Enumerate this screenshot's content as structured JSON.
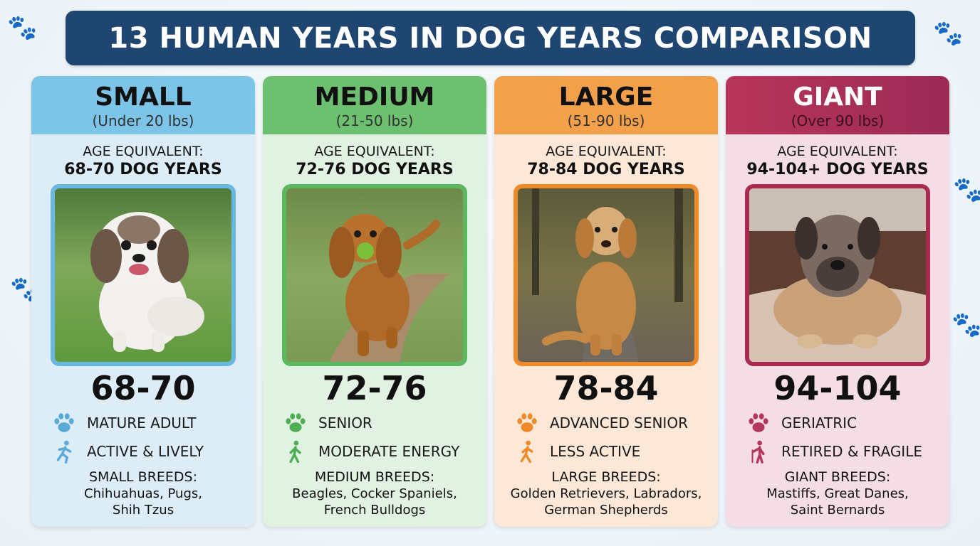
{
  "title": "13 HUMAN YEARS IN DOG YEARS COMPARISON",
  "colors": {
    "title_bg": "#1f4571",
    "small": "#7cc4e8",
    "medium": "#6cc070",
    "large": "#f2a04a",
    "giant": "#b8365a"
  },
  "cards": [
    {
      "size": "SMALL",
      "weight": "(Under 20 lbs)",
      "age_label": "AGE EQUIVALENT:",
      "age_value": "68-70 DOG YEARS",
      "photo": "shih-tzu-photo",
      "range": "68-70",
      "stage_icon": "paw-icon",
      "stage": "MATURE ADULT",
      "activity_icon": "running-person-icon",
      "activity": "ACTIVE & LIVELY",
      "breeds_label": "SMALL BREEDS:",
      "breeds_line1": "Chihuahuas, Pugs,",
      "breeds_line2": "Shih Tzus"
    },
    {
      "size": "MEDIUM",
      "weight": "(21-50 lbs)",
      "age_label": "AGE EQUIVALENT:",
      "age_value": "72-76 DOG YEARS",
      "photo": "cocker-spaniel-photo",
      "range": "72-76",
      "stage_icon": "paw-icon",
      "stage": "SENIOR",
      "activity_icon": "walking-person-icon",
      "activity": "MODERATE ENERGY",
      "breeds_label": "MEDIUM BREEDS:",
      "breeds_line1": "Beagles, Cocker Spaniels,",
      "breeds_line2": "French Bulldogs"
    },
    {
      "size": "LARGE",
      "weight": "(51-90 lbs)",
      "age_label": "AGE EQUIVALENT:",
      "age_value": "78-84 DOG YEARS",
      "photo": "golden-retriever-photo",
      "range": "78-84",
      "stage_icon": "paw-icon",
      "stage": "ADVANCED SENIOR",
      "activity_icon": "walking-person-icon",
      "activity": "LESS ACTIVE",
      "breeds_label": "LARGE BREEDS:",
      "breeds_line1": "Golden Retrievers, Labradors,",
      "breeds_line2": "German Shepherds"
    },
    {
      "size": "GIANT",
      "weight": "(Over 90 lbs)",
      "age_label": "AGE EQUIVALENT:",
      "age_value": "94-104+ DOG YEARS",
      "photo": "mastiff-photo",
      "range": "94-104",
      "stage_icon": "paw-icon",
      "stage": "GERIATRIC",
      "activity_icon": "cane-person-icon",
      "activity": "RETIRED & FRAGILE",
      "breeds_label": "GIANT BREEDS:",
      "breeds_line1": "Mastiffs, Great Danes,",
      "breeds_line2": "Saint Bernards"
    }
  ]
}
